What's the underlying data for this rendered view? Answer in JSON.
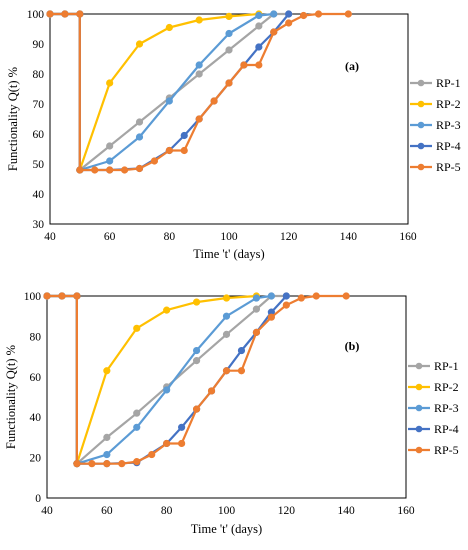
{
  "chart_data": [
    {
      "type": "line",
      "panel_label": "(a)",
      "xlabel": "Time 't' (days)",
      "ylabel": "Functionality Q(t) %",
      "xlim": [
        40,
        160
      ],
      "ylim": [
        30,
        100
      ],
      "xticks": [
        40,
        60,
        80,
        100,
        120,
        140,
        160
      ],
      "yticks": [
        30,
        40,
        50,
        60,
        70,
        80,
        90,
        100
      ],
      "grid": false,
      "legend_position": "right",
      "series": [
        {
          "name": "RP-1",
          "color": "#a5a5a5",
          "x": [
            40,
            45,
            50,
            50,
            60,
            70,
            80,
            90,
            100,
            110,
            115,
            120
          ],
          "y": [
            100,
            100,
            100,
            48,
            56,
            64,
            72,
            80,
            88,
            96,
            100,
            100
          ]
        },
        {
          "name": "RP-2",
          "color": "#ffc000",
          "x": [
            40,
            45,
            50,
            50,
            60,
            70,
            80,
            90,
            100,
            110
          ],
          "y": [
            100,
            100,
            100,
            48,
            77,
            90,
            95.5,
            98,
            99.2,
            100
          ]
        },
        {
          "name": "RP-3",
          "color": "#5b9bd5",
          "x": [
            40,
            45,
            50,
            50,
            60,
            70,
            80,
            90,
            100,
            110,
            115
          ],
          "y": [
            100,
            100,
            100,
            48,
            51,
            59,
            71,
            83,
            93.5,
            99.5,
            100
          ]
        },
        {
          "name": "RP-4",
          "color": "#4472c4",
          "x": [
            40,
            45,
            50,
            50,
            60,
            70,
            80,
            85,
            90,
            95,
            100,
            105,
            110,
            115,
            120
          ],
          "y": [
            100,
            100,
            100,
            48,
            48,
            48.5,
            54.5,
            59.5,
            65,
            71,
            77,
            83,
            89,
            94,
            100
          ]
        },
        {
          "name": "RP-5",
          "color": "#ed7d31",
          "x": [
            40,
            45,
            50,
            50,
            55,
            60,
            65,
            70,
            75,
            80,
            85,
            90,
            95,
            100,
            105,
            110,
            115,
            120,
            125,
            130,
            140
          ],
          "y": [
            100,
            100,
            100,
            48,
            48,
            48,
            48,
            48.5,
            51,
            54.5,
            54.5,
            65,
            71,
            77,
            83,
            83,
            94,
            97,
            99.5,
            100,
            100
          ]
        }
      ]
    },
    {
      "type": "line",
      "panel_label": "(b)",
      "xlabel": "Time 't' (days)",
      "ylabel": "Functionality Q(t) %",
      "xlim": [
        40,
        160
      ],
      "ylim": [
        0,
        100
      ],
      "xticks": [
        40,
        60,
        80,
        100,
        120,
        140,
        160
      ],
      "yticks": [
        0,
        20,
        40,
        60,
        80,
        100
      ],
      "grid": false,
      "legend_position": "right",
      "series": [
        {
          "name": "RP-1",
          "color": "#a5a5a5",
          "x": [
            40,
            45,
            50,
            50,
            60,
            70,
            80,
            90,
            100,
            110,
            115,
            120
          ],
          "y": [
            100,
            100,
            100,
            17,
            30,
            42,
            55,
            68,
            81,
            93.5,
            100,
            100
          ]
        },
        {
          "name": "RP-2",
          "color": "#ffc000",
          "x": [
            40,
            45,
            50,
            50,
            60,
            70,
            80,
            90,
            100,
            110
          ],
          "y": [
            100,
            100,
            100,
            17,
            63,
            84,
            93,
            97,
            99,
            100
          ]
        },
        {
          "name": "RP-3",
          "color": "#5b9bd5",
          "x": [
            40,
            45,
            50,
            50,
            60,
            70,
            80,
            90,
            100,
            110,
            115
          ],
          "y": [
            100,
            100,
            100,
            17,
            21.5,
            35,
            53.5,
            73,
            90,
            99,
            100
          ]
        },
        {
          "name": "RP-4",
          "color": "#4472c4",
          "x": [
            40,
            45,
            50,
            50,
            60,
            70,
            80,
            85,
            90,
            95,
            100,
            105,
            110,
            115,
            120
          ],
          "y": [
            100,
            100,
            100,
            17,
            17,
            17.5,
            27,
            35,
            44,
            53,
            63,
            73,
            82,
            92,
            100
          ]
        },
        {
          "name": "RP-5",
          "color": "#ed7d31",
          "x": [
            40,
            45,
            50,
            50,
            55,
            60,
            65,
            70,
            75,
            80,
            85,
            90,
            95,
            100,
            105,
            110,
            115,
            120,
            125,
            130,
            140
          ],
          "y": [
            100,
            100,
            100,
            17,
            17,
            17,
            17,
            18,
            21.5,
            27,
            27,
            44,
            53,
            63,
            63,
            82,
            89.5,
            95.5,
            99,
            100,
            100
          ]
        }
      ]
    }
  ]
}
